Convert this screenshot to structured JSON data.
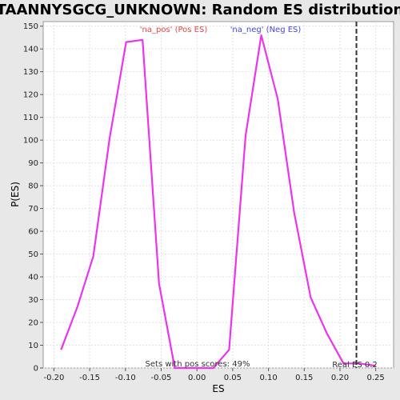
{
  "chart_data": {
    "type": "line",
    "title": "TAANNYSGCG_UNKNOWN: Random ES distribution",
    "xlabel": "ES",
    "ylabel": "P(ES)",
    "xlim": [
      -0.215,
      0.275
    ],
    "ylim": [
      0,
      152
    ],
    "x_ticks": [
      -0.2,
      -0.15,
      -0.1,
      -0.05,
      0.0,
      0.05,
      0.1,
      0.15,
      0.2,
      0.25
    ],
    "x_tick_labels": [
      "-0.20",
      "-0.15",
      "-0.10",
      "-0.05",
      "0.00",
      "0.05",
      "0.10",
      "0.15",
      "0.20",
      "0.25"
    ],
    "y_ticks": [
      0,
      10,
      20,
      30,
      40,
      50,
      60,
      70,
      80,
      90,
      100,
      110,
      120,
      130,
      140,
      150
    ],
    "y_tick_labels": [
      "0",
      "10",
      "20",
      "30",
      "40",
      "50",
      "60",
      "70",
      "80",
      "90",
      "100",
      "110",
      "120",
      "130",
      "140",
      "150"
    ],
    "grid": true,
    "series": [
      {
        "color": "#ee33ee",
        "x": [
          -0.19,
          -0.167,
          -0.145,
          -0.122,
          -0.099,
          -0.076,
          -0.053,
          -0.031,
          0.0,
          0.023,
          0.045,
          0.068,
          0.09,
          0.113,
          0.136,
          0.159,
          0.182,
          0.205,
          0.227,
          0.25
        ],
        "y": [
          8,
          27,
          49,
          101,
          143,
          144,
          37,
          0,
          0,
          0,
          8,
          102,
          146,
          118,
          68,
          31,
          15,
          2,
          2,
          1
        ]
      }
    ],
    "reference_line": {
      "x": 0.223,
      "label": "Real ES 0.2",
      "color": "#333333",
      "style": "dashed"
    },
    "annotations": {
      "pos_label": "'na_pos' (Pos ES)",
      "pos_color": "#ee4444",
      "neg_label": "'na_neg' (Neg ES)",
      "neg_color": "#4444ee",
      "footer": "Sets with pos scores: 49%"
    }
  }
}
